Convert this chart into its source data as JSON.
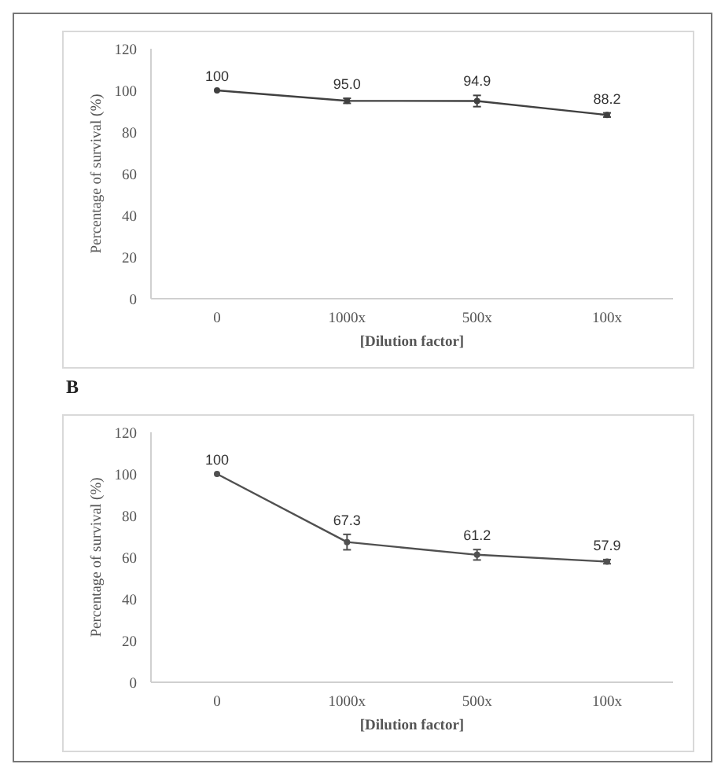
{
  "chart_data": [
    {
      "type": "line",
      "xlabel": "[Dilution factor]",
      "ylabel": "Percentage of survival (%)",
      "categories": [
        "0",
        "1000x",
        "500x",
        "100x"
      ],
      "series": [
        {
          "color": "#404040",
          "values": [
            100,
            95.0,
            94.9,
            88.2
          ],
          "errors": [
            null,
            1.2,
            2.7,
            1
          ],
          "value_labels": [
            "100",
            "95.0",
            "94.9",
            "88.2"
          ]
        }
      ],
      "ylim": [
        0,
        120
      ],
      "yticks": [
        0,
        20,
        40,
        60,
        80,
        100,
        120
      ],
      "grid": false,
      "marker": "circle",
      "line_style": "solid"
    },
    {
      "type": "line",
      "title": "B",
      "xlabel": "[Dilution factor]",
      "ylabel": "Percentage of survival (%)",
      "categories": [
        "0",
        "1000x",
        "500x",
        "100x"
      ],
      "series": [
        {
          "color": "#505050",
          "values": [
            100,
            67.3,
            61.2,
            57.9
          ],
          "errors": [
            null,
            3.7,
            2.5,
            1
          ],
          "value_labels": [
            "100",
            "67.3",
            "61.2",
            "57.9"
          ]
        }
      ],
      "ylim": [
        0,
        120
      ],
      "yticks": [
        0,
        20,
        40,
        60,
        80,
        100,
        120
      ],
      "grid": false,
      "marker": "circle",
      "line_style": "solid"
    }
  ]
}
